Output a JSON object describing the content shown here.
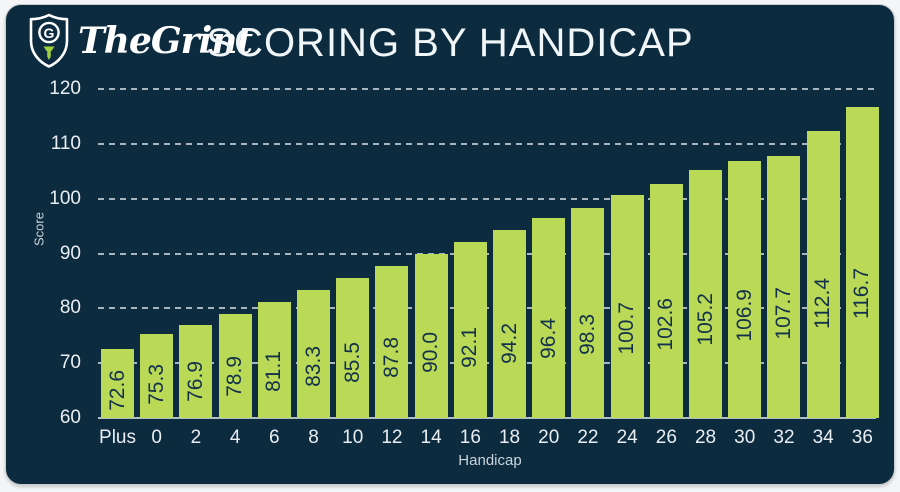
{
  "header": {
    "brand": "TheGrint",
    "logo_icon": "shield-with-g-and-golf-tee",
    "title": "SCORING BY HANDICAP"
  },
  "chart_data": {
    "type": "bar",
    "title": "SCORING BY HANDICAP",
    "xlabel": "Handicap",
    "ylabel": "Score",
    "categories": [
      "Plus",
      "0",
      "2",
      "4",
      "6",
      "8",
      "10",
      "12",
      "14",
      "16",
      "18",
      "20",
      "22",
      "24",
      "26",
      "28",
      "30",
      "32",
      "34",
      "36"
    ],
    "values": [
      72.6,
      75.3,
      76.9,
      78.9,
      81.1,
      83.3,
      85.5,
      87.8,
      90.0,
      92.1,
      94.2,
      96.4,
      98.3,
      100.7,
      102.6,
      105.2,
      106.9,
      107.7,
      112.4,
      116.7
    ],
    "value_labels": [
      "72.6",
      "75.3",
      "76.9",
      "78.9",
      "81.1",
      "83.3",
      "85.5",
      "87.8",
      "90.0",
      "92.1",
      "94.2",
      "96.4",
      "98.3",
      "100.7",
      "102.6",
      "105.2",
      "106.9",
      "107.7",
      "112.4",
      "116.7"
    ],
    "yticks": [
      60,
      70,
      80,
      90,
      100,
      110,
      120
    ],
    "ylim": [
      60,
      120
    ],
    "grid": "horizontal-dashed",
    "legend": "none",
    "bar_value_labels_rotated": true
  },
  "colors": {
    "background": "#0d2b3e",
    "bar": "#b9d957",
    "bar_label": "#14314b",
    "axis_text": "#e9eef2",
    "muted_text": "#c9d4da",
    "gridline": "#c2cdd4",
    "title_text": "#f0f5f8",
    "page_margin": "#ffffff",
    "logo_accent": "#9fce3e"
  }
}
